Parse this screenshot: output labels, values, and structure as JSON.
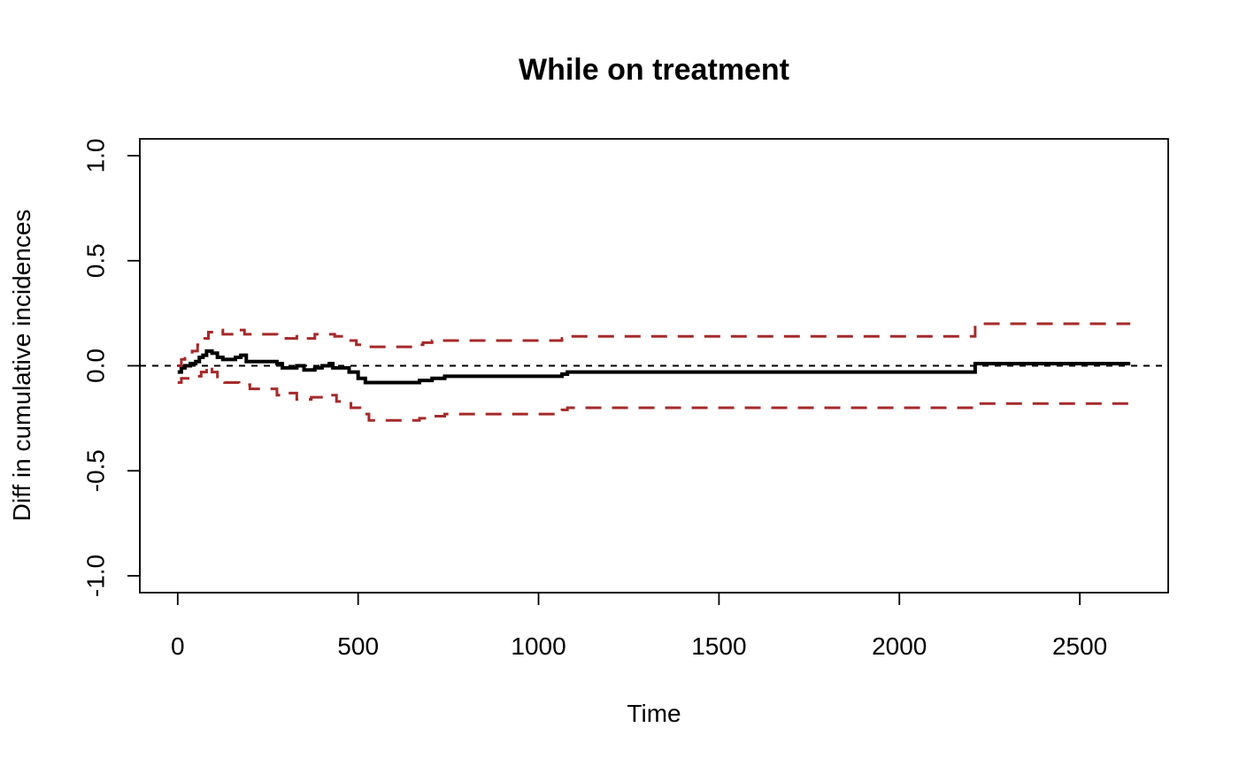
{
  "chart_data": {
    "type": "line",
    "title": "While on treatment",
    "xlabel": "Time",
    "ylabel": "Diff in cumulative incidences",
    "xlim": [
      -105,
      2745
    ],
    "ylim": [
      -1.08,
      1.08
    ],
    "x_ticks": [
      0,
      500,
      1000,
      1500,
      2000,
      2500
    ],
    "y_ticks": [
      -1.0,
      -0.5,
      0.0,
      0.5,
      1.0
    ],
    "x_tick_labels": [
      "0",
      "500",
      "1000",
      "1500",
      "2000",
      "2500"
    ],
    "y_tick_labels": [
      "-1.0",
      "-0.5",
      "0.0",
      "0.5",
      "1.0"
    ],
    "grid": false,
    "legend": "none",
    "reference_line": {
      "y": 0.0,
      "style": "dashed",
      "color": "#000000"
    },
    "colors": {
      "estimate": "#000000",
      "confidence_bounds": "#A52A2A",
      "axes": "#000000",
      "background": "#ffffff"
    },
    "series": [
      {
        "style": "solid",
        "points": [
          [
            0,
            -0.03
          ],
          [
            10,
            -0.01
          ],
          [
            20,
            0.0
          ],
          [
            35,
            0.01
          ],
          [
            50,
            0.02
          ],
          [
            60,
            0.04
          ],
          [
            70,
            0.05
          ],
          [
            80,
            0.07
          ],
          [
            95,
            0.06
          ],
          [
            110,
            0.04
          ],
          [
            125,
            0.03
          ],
          [
            160,
            0.04
          ],
          [
            175,
            0.05
          ],
          [
            190,
            0.02
          ],
          [
            275,
            0.01
          ],
          [
            290,
            -0.01
          ],
          [
            330,
            0.0
          ],
          [
            350,
            -0.02
          ],
          [
            380,
            -0.01
          ],
          [
            400,
            0.0
          ],
          [
            420,
            0.01
          ],
          [
            430,
            -0.01
          ],
          [
            475,
            -0.03
          ],
          [
            500,
            -0.06
          ],
          [
            520,
            -0.08
          ],
          [
            670,
            -0.07
          ],
          [
            705,
            -0.06
          ],
          [
            740,
            -0.05
          ],
          [
            1065,
            -0.04
          ],
          [
            1080,
            -0.03
          ],
          [
            2210,
            0.01
          ],
          [
            2640,
            0.01
          ]
        ]
      },
      {
        "style": "dashed",
        "points": [
          [
            0,
            0.0
          ],
          [
            10,
            0.03
          ],
          [
            20,
            0.05
          ],
          [
            40,
            0.07
          ],
          [
            55,
            0.1
          ],
          [
            70,
            0.13
          ],
          [
            85,
            0.16
          ],
          [
            110,
            0.17
          ],
          [
            125,
            0.15
          ],
          [
            165,
            0.17
          ],
          [
            185,
            0.15
          ],
          [
            275,
            0.14
          ],
          [
            300,
            0.13
          ],
          [
            330,
            0.14
          ],
          [
            355,
            0.13
          ],
          [
            380,
            0.15
          ],
          [
            435,
            0.14
          ],
          [
            465,
            0.12
          ],
          [
            495,
            0.1
          ],
          [
            520,
            0.09
          ],
          [
            660,
            0.1
          ],
          [
            680,
            0.11
          ],
          [
            705,
            0.12
          ],
          [
            1065,
            0.13
          ],
          [
            1080,
            0.14
          ],
          [
            2210,
            0.2
          ],
          [
            2640,
            0.2
          ]
        ]
      },
      {
        "style": "dashed",
        "points": [
          [
            0,
            -0.08
          ],
          [
            10,
            -0.06
          ],
          [
            40,
            -0.05
          ],
          [
            65,
            -0.03
          ],
          [
            80,
            0.0
          ],
          [
            95,
            -0.03
          ],
          [
            110,
            -0.06
          ],
          [
            130,
            -0.08
          ],
          [
            170,
            -0.09
          ],
          [
            200,
            -0.11
          ],
          [
            275,
            -0.14
          ],
          [
            300,
            -0.13
          ],
          [
            330,
            -0.16
          ],
          [
            370,
            -0.15
          ],
          [
            410,
            -0.14
          ],
          [
            440,
            -0.17
          ],
          [
            480,
            -0.2
          ],
          [
            505,
            -0.23
          ],
          [
            530,
            -0.26
          ],
          [
            670,
            -0.25
          ],
          [
            705,
            -0.24
          ],
          [
            740,
            -0.23
          ],
          [
            1065,
            -0.21
          ],
          [
            1080,
            -0.2
          ],
          [
            2210,
            -0.18
          ],
          [
            2640,
            -0.18
          ]
        ]
      }
    ]
  }
}
